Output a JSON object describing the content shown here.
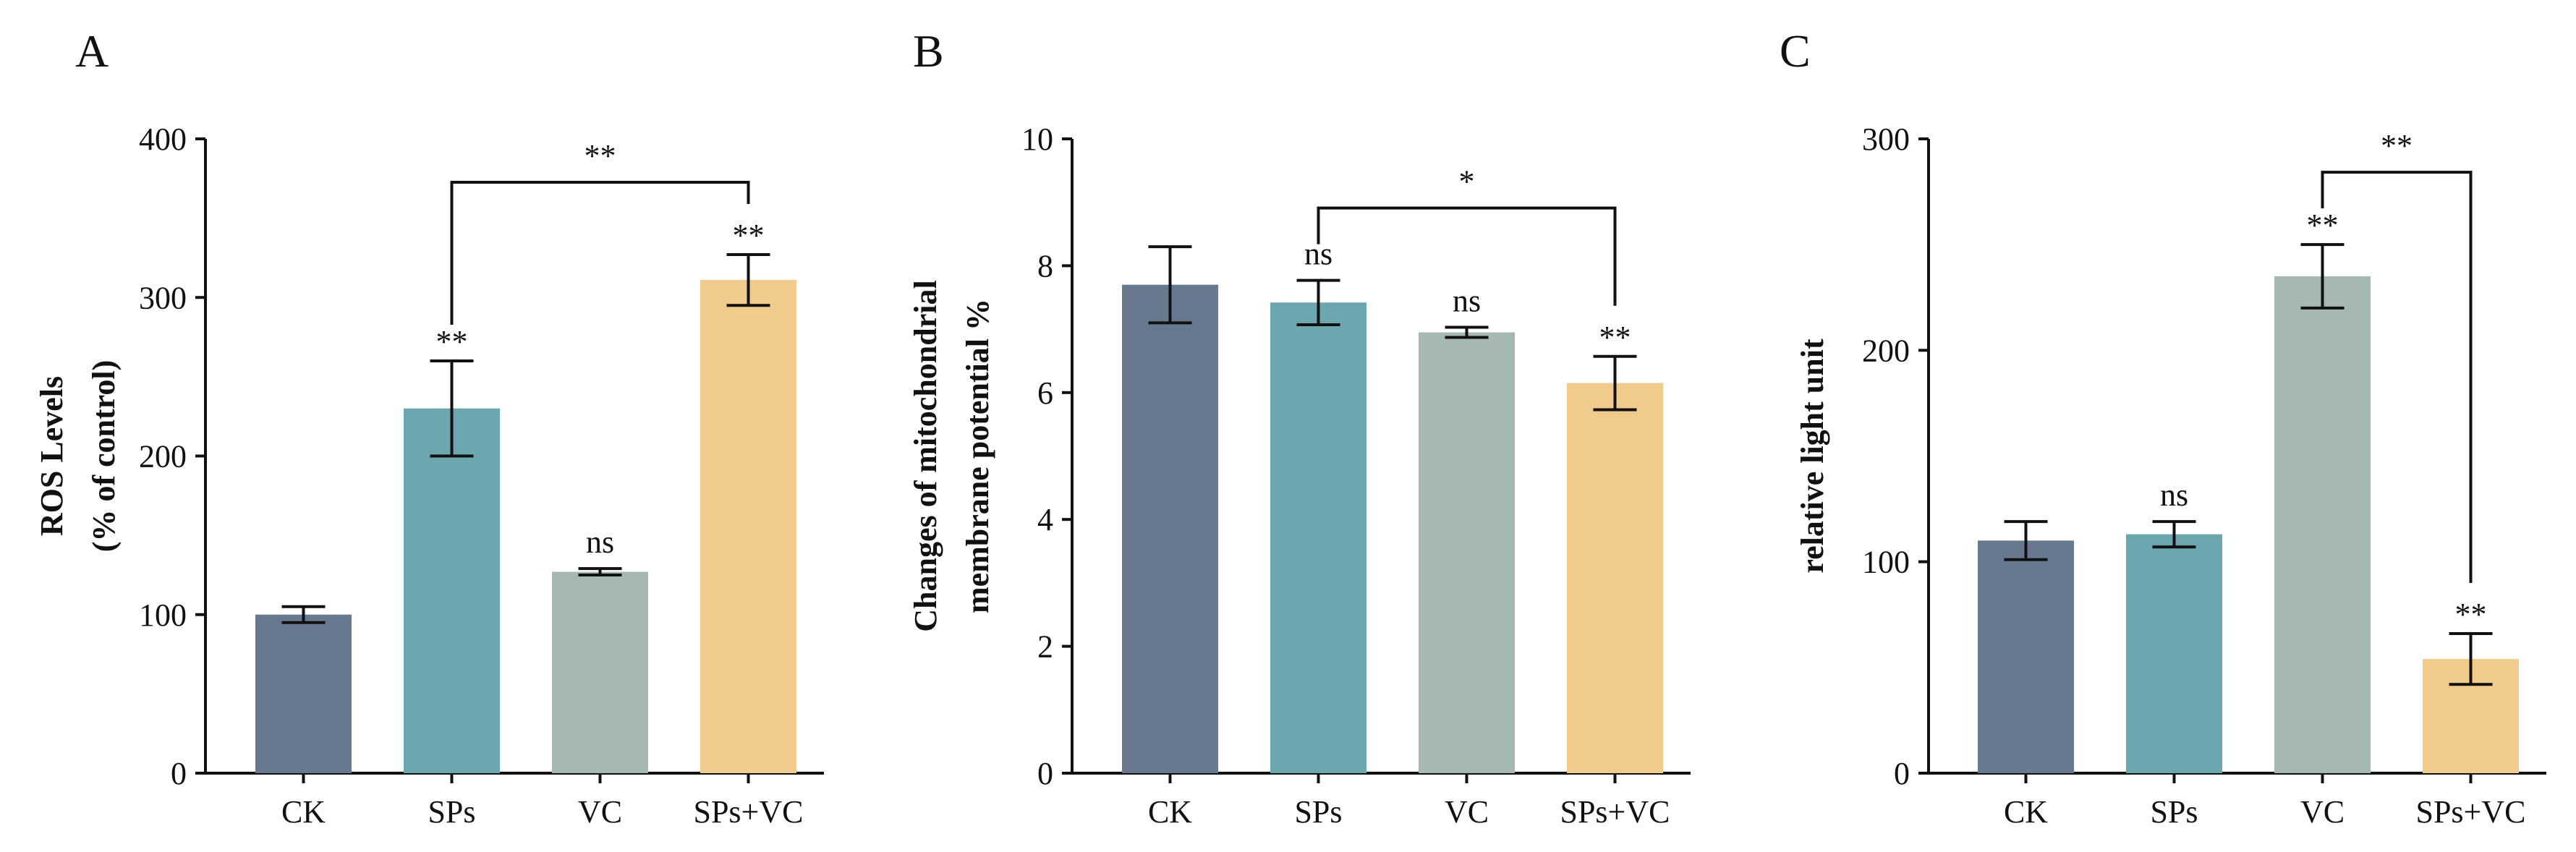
{
  "chart_data": [
    {
      "type": "bar",
      "panel": "A",
      "categories": [
        "CK",
        "SPs",
        "VC",
        "SPs+VC"
      ],
      "values": [
        100,
        230,
        127,
        311
      ],
      "errors": [
        5,
        30,
        2,
        16
      ],
      "colors": [
        "#68788f",
        "#6ca6ae",
        "#a6b9b1",
        "#f1cb8c"
      ],
      "ylabel": [
        "ROS Levels",
        "(% of control)"
      ],
      "ylim": [
        0,
        400
      ],
      "yticks": [
        0,
        100,
        200,
        300,
        400
      ],
      "significance": [
        "",
        "**",
        "ns",
        "**"
      ],
      "comparisons": [
        {
          "from": 1,
          "to": 3,
          "label": "**"
        }
      ]
    },
    {
      "type": "bar",
      "panel": "B",
      "categories": [
        "CK",
        "SPs",
        "VC",
        "SPs+VC"
      ],
      "values": [
        7.7,
        7.42,
        6.95,
        6.15
      ],
      "errors": [
        0.6,
        0.35,
        0.08,
        0.42
      ],
      "colors": [
        "#68788f",
        "#6ca6ae",
        "#a6b9b1",
        "#f1cb8c"
      ],
      "ylabel": [
        "Changes of mitochondrial",
        "membrane potential %"
      ],
      "ylim": [
        0,
        10
      ],
      "yticks": [
        0,
        2,
        4,
        6,
        8,
        10
      ],
      "significance": [
        "",
        "ns",
        "ns",
        "**"
      ],
      "comparisons": [
        {
          "from": 1,
          "to": 3,
          "label": "*"
        }
      ]
    },
    {
      "type": "bar",
      "panel": "C",
      "categories": [
        "CK",
        "SPs",
        "VC",
        "SPs+VC"
      ],
      "values": [
        110,
        113,
        235,
        54
      ],
      "errors": [
        9,
        6,
        15,
        12
      ],
      "colors": [
        "#68788f",
        "#6ca6ae",
        "#a6b9b1",
        "#f1cb8c"
      ],
      "ylabel": [
        "relative light unit"
      ],
      "ylim": [
        0,
        300
      ],
      "yticks": [
        0,
        100,
        200,
        300
      ],
      "significance": [
        "",
        "ns",
        "**",
        "**"
      ],
      "comparisons": [
        {
          "from": 2,
          "to": 3,
          "label": "**"
        }
      ]
    }
  ]
}
